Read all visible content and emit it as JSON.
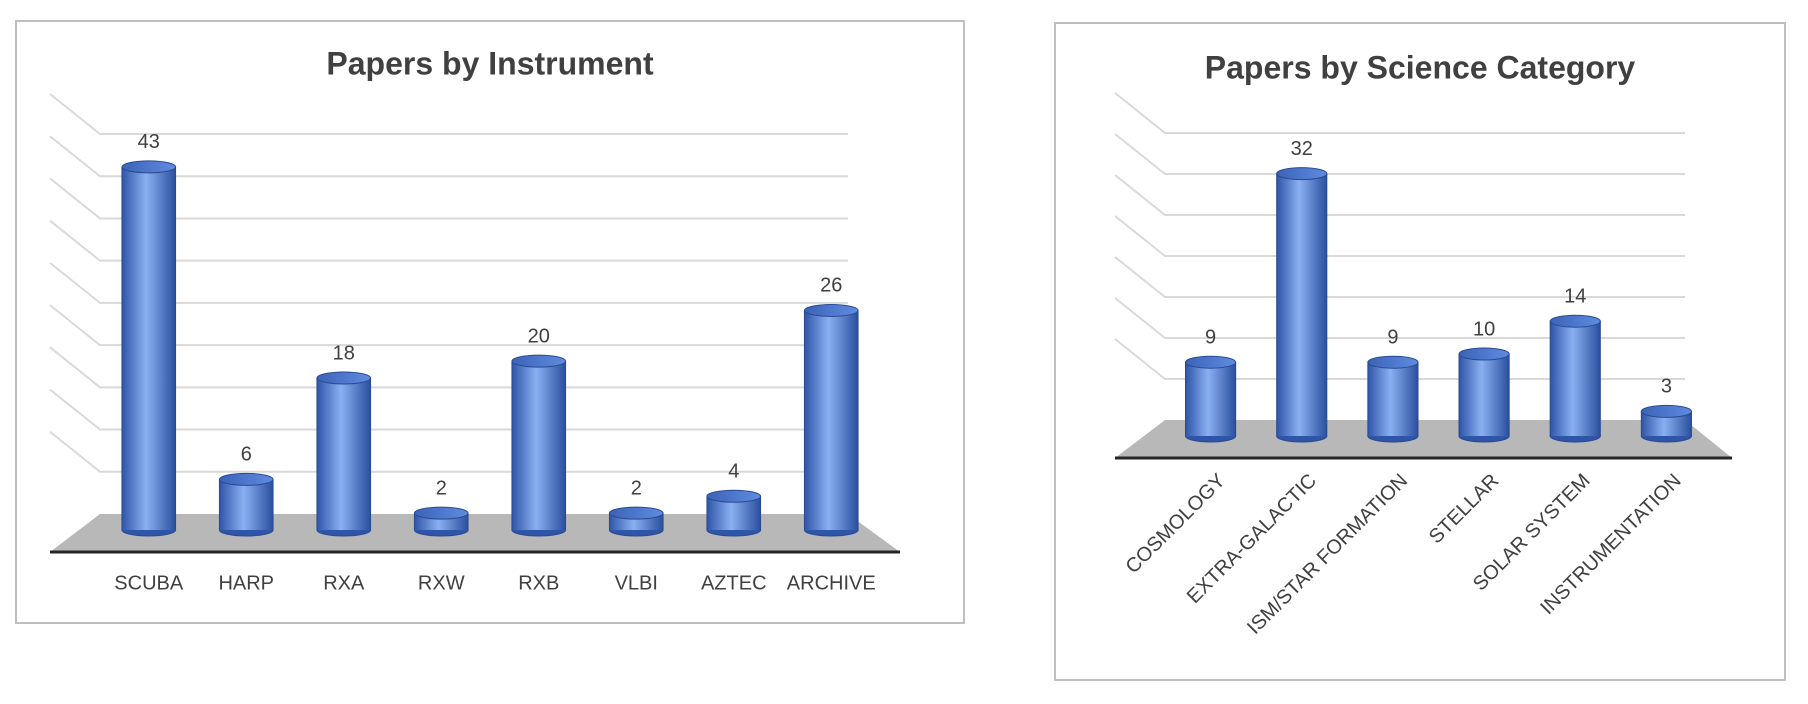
{
  "chart_data": [
    {
      "type": "bar",
      "title": "Papers by Instrument",
      "categories": [
        "SCUBA",
        "HARP",
        "RXA",
        "RXW",
        "RXB",
        "VLBI",
        "AZTEC",
        "ARCHIVE"
      ],
      "values": [
        43,
        6,
        18,
        2,
        20,
        2,
        4,
        26
      ],
      "color": "#4a78d0",
      "ylim": [
        0,
        45
      ],
      "yticks": [
        0,
        5,
        10,
        15,
        20,
        25,
        30,
        35,
        40,
        45
      ],
      "grid": true
    },
    {
      "type": "bar",
      "title": "Papers by Science Category",
      "categories": [
        "COSMOLOGY",
        "EXTRA-GALACTIC",
        "ISM/STAR FORMATION",
        "STELLAR",
        "SOLAR SYSTEM",
        "INSTRUMENTATION"
      ],
      "values": [
        9,
        32,
        9,
        10,
        14,
        3
      ],
      "color": "#4a78d0",
      "ylim": [
        0,
        35
      ],
      "yticks": [
        0,
        5,
        10,
        15,
        20,
        25,
        30,
        35
      ],
      "grid": true
    }
  ]
}
